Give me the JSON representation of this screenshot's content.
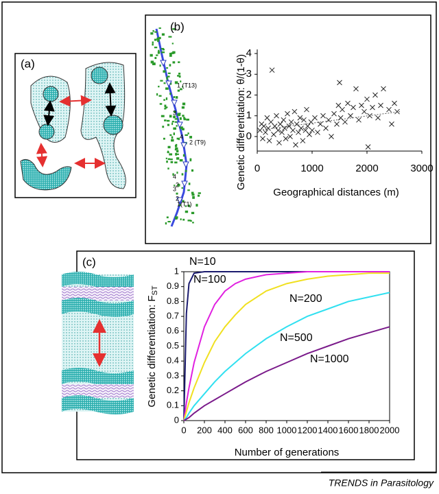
{
  "panels": {
    "a": {
      "label": "(a)"
    }
  },
  "chart_data": [
    {
      "type": "scatter",
      "panel_label": "(b)",
      "map_labels": [
        "1 (T13)",
        "3",
        "4",
        "2 (T9)",
        "4",
        "2",
        "3",
        "2",
        "1(T1)"
      ],
      "x_label": "Geographical distances (m)",
      "y_label": "Genetic differentiation: θ/(1-θ)",
      "xlim": [
        0,
        3000
      ],
      "xticks": [
        0,
        1000,
        2000,
        3000
      ],
      "ylim": [
        -0.7,
        4
      ],
      "yticks": [
        0,
        1,
        2,
        3,
        4
      ],
      "marker_color": "#222222",
      "x": [
        50,
        80,
        100,
        120,
        150,
        180,
        200,
        220,
        250,
        270,
        300,
        320,
        350,
        380,
        400,
        420,
        450,
        480,
        500,
        520,
        550,
        580,
        600,
        620,
        650,
        680,
        700,
        720,
        750,
        780,
        800,
        830,
        850,
        880,
        900,
        920,
        950,
        980,
        1000,
        1050,
        1100,
        1150,
        1200,
        1250,
        1300,
        1350,
        1400,
        1450,
        1480,
        1500,
        1520,
        1550,
        1600,
        1650,
        1700,
        1750,
        1800,
        1850,
        1900,
        1950,
        2000,
        2020,
        2050,
        2100,
        2150,
        2200,
        2250,
        2300,
        2400,
        2450,
        2500,
        2550
      ],
      "values": [
        0.3,
        0.6,
        -0.1,
        0.5,
        0.2,
        0.9,
        0.4,
        -0.2,
        0.7,
        3.2,
        0.1,
        0.5,
        1.0,
        0.3,
        -0.3,
        0.6,
        0.2,
        0.8,
        0.4,
        -0.1,
        1.1,
        0.5,
        0.0,
        0.7,
        0.3,
        1.2,
        -0.4,
        0.6,
        0.2,
        0.9,
        0.4,
        -0.2,
        0.8,
        0.3,
        1.3,
        0.5,
        0.1,
        0.7,
        0.3,
        0.9,
        0.2,
        0.6,
        1.0,
        0.4,
        0.8,
        0.0,
        1.1,
        0.6,
        1.5,
        2.6,
        0.9,
        1.3,
        0.7,
        1.6,
        1.0,
        1.4,
        2.3,
        0.8,
        1.5,
        1.2,
        1.8,
        -0.5,
        1.0,
        1.4,
        2.0,
        0.9,
        1.5,
        2.3,
        1.3,
        0.6,
        1.6,
        1.2
      ],
      "trend_line": {
        "x": [
          0,
          2600
        ],
        "values": [
          0.3,
          1.2
        ]
      }
    },
    {
      "type": "line",
      "panel_label": "(c)",
      "x_label": "Number of generations",
      "y_label": "Genetic differentiation: F",
      "y_label_sub": "ST",
      "xlim": [
        0,
        2000
      ],
      "xticks": [
        0,
        200,
        400,
        600,
        800,
        1000,
        1200,
        1400,
        1600,
        1800,
        2000
      ],
      "ylim": [
        0,
        1
      ],
      "yticks": [
        0,
        0.1,
        0.2,
        0.3,
        0.4,
        0.5,
        0.6,
        0.7,
        0.8,
        0.9,
        1
      ],
      "x": [
        0,
        25,
        50,
        100,
        200,
        300,
        400,
        500,
        600,
        800,
        1000,
        1200,
        1400,
        1600,
        1800,
        2000
      ],
      "series": [
        {
          "name": "N=10",
          "color": "#1a1a6e",
          "values": [
            0,
            0.72,
            0.92,
            0.99,
            1,
            1,
            1,
            1,
            1,
            1,
            1,
            1,
            1,
            1,
            1,
            1
          ]
        },
        {
          "name": "N=100",
          "color": "#e020e0",
          "values": [
            0,
            0.12,
            0.22,
            0.39,
            0.63,
            0.78,
            0.87,
            0.92,
            0.95,
            0.98,
            0.99,
            1,
            1,
            1,
            1,
            1
          ]
        },
        {
          "name": "N=200",
          "color": "#f0e020",
          "values": [
            0,
            0.06,
            0.12,
            0.22,
            0.39,
            0.53,
            0.63,
            0.71,
            0.78,
            0.87,
            0.92,
            0.95,
            0.97,
            0.98,
            0.99,
            0.99
          ]
        },
        {
          "name": "N=500",
          "color": "#30e0f0",
          "values": [
            0,
            0.02,
            0.05,
            0.1,
            0.18,
            0.26,
            0.33,
            0.39,
            0.45,
            0.55,
            0.63,
            0.7,
            0.75,
            0.8,
            0.83,
            0.86
          ]
        },
        {
          "name": "N=1000",
          "color": "#7a1a8a",
          "values": [
            0,
            0.01,
            0.02,
            0.05,
            0.1,
            0.14,
            0.18,
            0.22,
            0.26,
            0.33,
            0.39,
            0.45,
            0.5,
            0.55,
            0.59,
            0.63
          ]
        }
      ]
    }
  ],
  "footer": "TRENDS in Parasitology"
}
